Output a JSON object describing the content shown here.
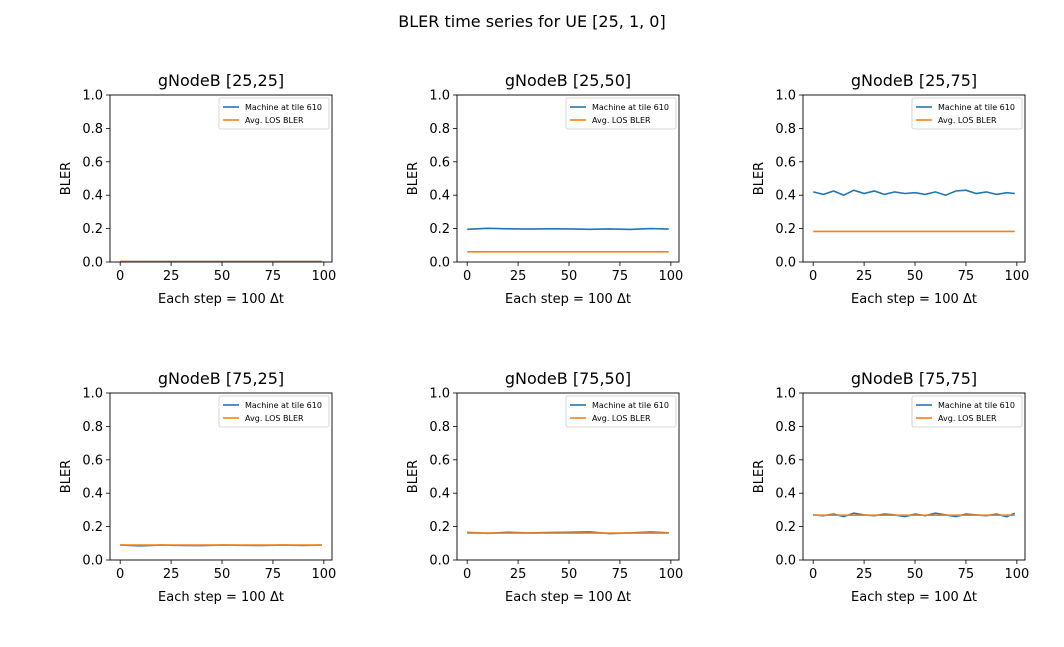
{
  "figure": {
    "title": "BLER time series for UE [25, 1, 0]"
  },
  "colors": {
    "machine": "#1f77b4",
    "avg": "#ff7f0e"
  },
  "chart_data": [
    {
      "type": "line",
      "title": "gNodeB [25,25]",
      "xlabel": "Each step = 100 Δt",
      "ylabel": "BLER",
      "xlim": [
        -5,
        104
      ],
      "ylim": [
        0,
        1
      ],
      "xticks": [
        "0",
        "25",
        "50",
        "75",
        "100"
      ],
      "yticks": [
        "0.0",
        "0.2",
        "0.4",
        "0.6",
        "0.8",
        "1.0"
      ],
      "legend_position": "top-right",
      "series": [
        {
          "name": "Machine at tile 610",
          "x": [
            0,
            99
          ],
          "values": [
            0.003,
            0.003
          ]
        },
        {
          "name": "Avg. LOS BLER",
          "x": [
            0,
            99
          ],
          "values": [
            0.003,
            0.003
          ]
        }
      ]
    },
    {
      "type": "line",
      "title": "gNodeB [25,50]",
      "xlabel": "Each step = 100 Δt",
      "ylabel": "BLER",
      "xlim": [
        -5,
        104
      ],
      "ylim": [
        0,
        1
      ],
      "xticks": [
        "0",
        "25",
        "50",
        "75",
        "100"
      ],
      "yticks": [
        "0.0",
        "0.2",
        "0.4",
        "0.6",
        "0.8",
        "1.0"
      ],
      "legend_position": "top-right",
      "series": [
        {
          "name": "Machine at tile 610",
          "x": [
            0,
            10,
            20,
            30,
            40,
            50,
            60,
            70,
            80,
            90,
            99
          ],
          "values": [
            0.196,
            0.202,
            0.199,
            0.197,
            0.199,
            0.198,
            0.196,
            0.198,
            0.195,
            0.2,
            0.197
          ]
        },
        {
          "name": "Avg. LOS BLER",
          "x": [
            0,
            99
          ],
          "values": [
            0.061,
            0.061
          ]
        }
      ]
    },
    {
      "type": "line",
      "title": "gNodeB [25,75]",
      "xlabel": "Each step = 100 Δt",
      "ylabel": "BLER",
      "xlim": [
        -5,
        104
      ],
      "ylim": [
        0,
        1
      ],
      "xticks": [
        "0",
        "25",
        "50",
        "75",
        "100"
      ],
      "yticks": [
        "0.0",
        "0.2",
        "0.4",
        "0.6",
        "0.8",
        "1.0"
      ],
      "legend_position": "top-right",
      "series": [
        {
          "name": "Machine at tile 610",
          "x": [
            0,
            5,
            10,
            15,
            20,
            25,
            30,
            35,
            40,
            45,
            50,
            55,
            60,
            65,
            70,
            75,
            80,
            85,
            90,
            95,
            99
          ],
          "values": [
            0.42,
            0.405,
            0.425,
            0.4,
            0.43,
            0.41,
            0.425,
            0.405,
            0.42,
            0.41,
            0.415,
            0.405,
            0.42,
            0.4,
            0.425,
            0.43,
            0.41,
            0.42,
            0.405,
            0.415,
            0.41
          ]
        },
        {
          "name": "Avg. LOS BLER",
          "x": [
            0,
            99
          ],
          "values": [
            0.183,
            0.183
          ]
        }
      ]
    },
    {
      "type": "line",
      "title": "gNodeB [75,25]",
      "xlabel": "Each step = 100 Δt",
      "ylabel": "BLER",
      "xlim": [
        -5,
        104
      ],
      "ylim": [
        0,
        1
      ],
      "xticks": [
        "0",
        "25",
        "50",
        "75",
        "100"
      ],
      "yticks": [
        "0.0",
        "0.2",
        "0.4",
        "0.6",
        "0.8",
        "1.0"
      ],
      "legend_position": "top-right",
      "series": [
        {
          "name": "Machine at tile 610",
          "x": [
            0,
            10,
            20,
            30,
            40,
            50,
            60,
            70,
            80,
            90,
            99
          ],
          "values": [
            0.09,
            0.085,
            0.089,
            0.087,
            0.086,
            0.089,
            0.088,
            0.087,
            0.089,
            0.087,
            0.09
          ]
        },
        {
          "name": "Avg. LOS BLER",
          "x": [
            0,
            99
          ],
          "values": [
            0.089,
            0.089
          ]
        }
      ]
    },
    {
      "type": "line",
      "title": "gNodeB [75,50]",
      "xlabel": "Each step = 100 Δt",
      "ylabel": "BLER",
      "xlim": [
        -5,
        104
      ],
      "ylim": [
        0,
        1
      ],
      "xticks": [
        "0",
        "25",
        "50",
        "75",
        "100"
      ],
      "yticks": [
        "0.0",
        "0.2",
        "0.4",
        "0.6",
        "0.8",
        "1.0"
      ],
      "legend_position": "top-right",
      "series": [
        {
          "name": "Machine at tile 610",
          "x": [
            0,
            10,
            20,
            30,
            40,
            50,
            60,
            70,
            80,
            90,
            99
          ],
          "values": [
            0.165,
            0.16,
            0.166,
            0.162,
            0.164,
            0.166,
            0.168,
            0.158,
            0.162,
            0.167,
            0.163
          ]
        },
        {
          "name": "Avg. LOS BLER",
          "x": [
            0,
            99
          ],
          "values": [
            0.161,
            0.161
          ]
        }
      ]
    },
    {
      "type": "line",
      "title": "gNodeB [75,75]",
      "xlabel": "Each step = 100 Δt",
      "ylabel": "BLER",
      "xlim": [
        -5,
        104
      ],
      "ylim": [
        0,
        1
      ],
      "xticks": [
        "0",
        "25",
        "50",
        "75",
        "100"
      ],
      "yticks": [
        "0.0",
        "0.2",
        "0.4",
        "0.6",
        "0.8",
        "1.0"
      ],
      "legend_position": "top-right",
      "series": [
        {
          "name": "Machine at tile 610",
          "x": [
            0,
            5,
            10,
            15,
            20,
            25,
            30,
            35,
            40,
            45,
            50,
            55,
            60,
            65,
            70,
            75,
            80,
            85,
            90,
            95,
            99
          ],
          "values": [
            0.27,
            0.265,
            0.275,
            0.26,
            0.28,
            0.27,
            0.265,
            0.275,
            0.27,
            0.26,
            0.275,
            0.265,
            0.28,
            0.27,
            0.26,
            0.275,
            0.27,
            0.265,
            0.275,
            0.26,
            0.28
          ]
        },
        {
          "name": "Avg. LOS BLER",
          "x": [
            0,
            99
          ],
          "values": [
            0.268,
            0.268
          ]
        }
      ]
    }
  ]
}
